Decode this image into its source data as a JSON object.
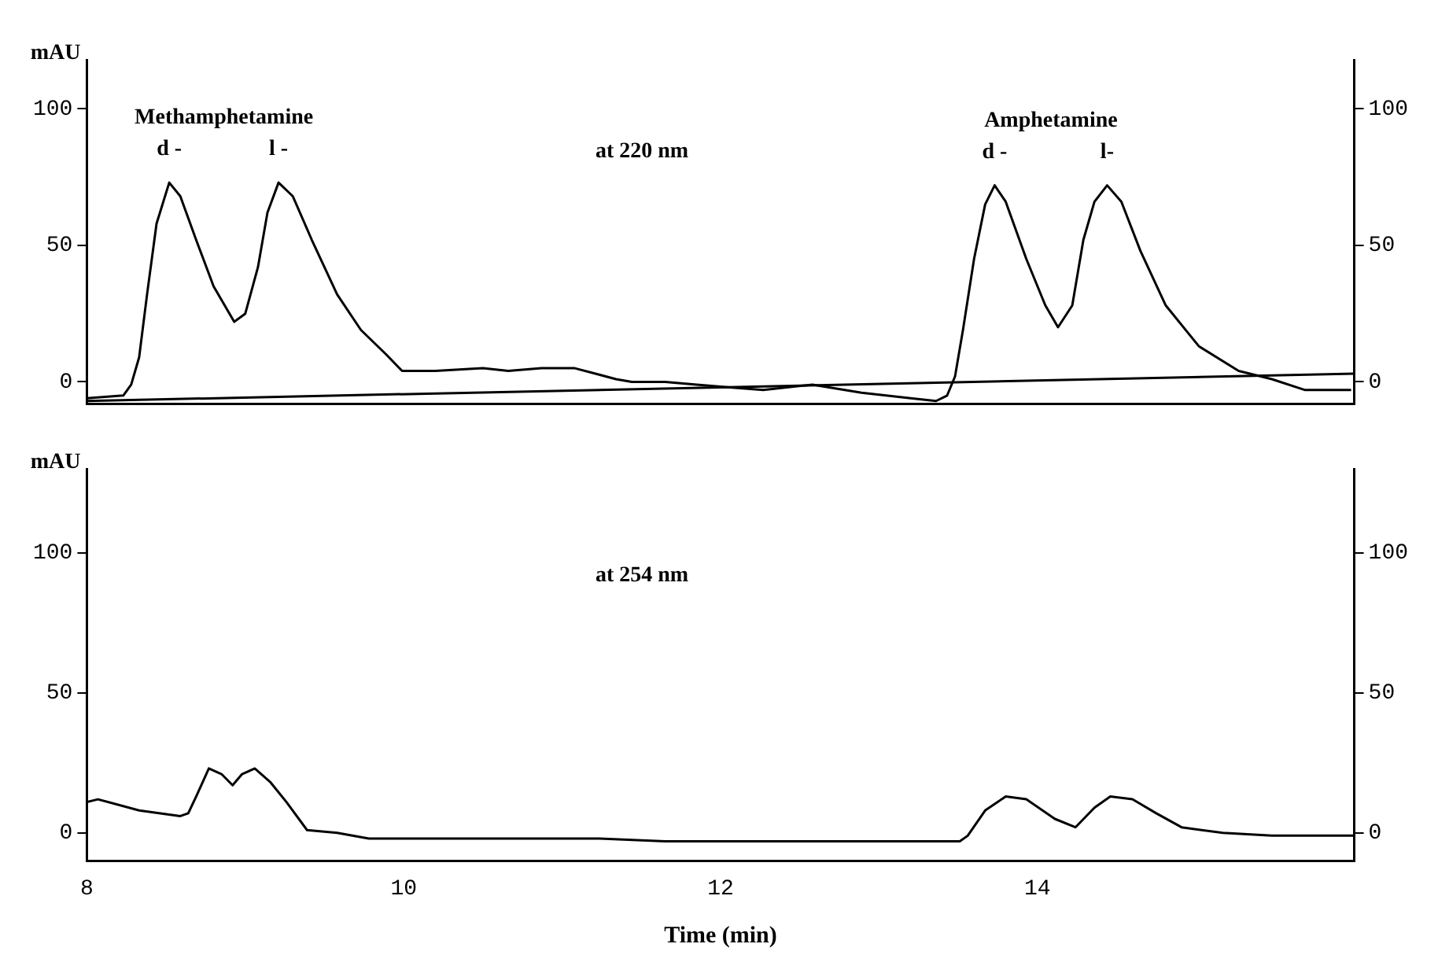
{
  "chart_data": [
    {
      "type": "line",
      "ylabel": "mAU",
      "xlim": [
        8,
        16
      ],
      "ylim": [
        -8,
        118
      ],
      "yticks": [
        0,
        50,
        100
      ],
      "y2lim": [
        -8,
        118
      ],
      "y2ticks": [
        0,
        50,
        100
      ],
      "tick_labels": "y",
      "grid": false,
      "legend": false,
      "marker": "none",
      "line_style": "solid",
      "annotations": [
        {
          "text": "d -",
          "x": 8.52,
          "y": 73
        },
        {
          "text": "l -",
          "x": 9.21,
          "y": 73
        },
        "Methamphetamine",
        {
          "text": "d -",
          "x": 13.73,
          "y": 72
        },
        {
          "text": "l-",
          "x": 14.44,
          "y": 72
        },
        "Amphetamine",
        "at 220 nm"
      ],
      "series": [
        {
          "color": "#000000",
          "x": [
            8.0,
            8.23,
            8.28,
            8.33,
            8.38,
            8.44,
            8.52,
            8.59,
            8.69,
            8.8,
            8.93,
            9.0,
            9.08,
            9.14,
            9.21,
            9.3,
            9.42,
            9.58,
            9.73,
            9.89,
            9.99,
            10.2,
            10.5,
            10.66,
            10.87,
            11.08,
            11.34,
            11.44,
            11.65,
            11.85,
            12.06,
            12.27,
            12.58,
            12.89,
            13.2,
            13.36,
            13.43,
            13.48,
            13.53,
            13.6,
            13.67,
            13.73,
            13.8,
            13.93,
            14.05,
            14.13,
            14.22,
            14.29,
            14.36,
            14.44,
            14.53,
            14.65,
            14.81,
            15.02,
            15.27,
            15.48,
            15.69,
            15.98
          ],
          "values": [
            -6,
            -5,
            -1,
            9,
            32,
            58,
            73,
            68,
            52,
            35,
            22,
            25,
            42,
            62,
            73,
            68,
            52,
            32,
            19,
            10,
            4,
            4,
            5,
            4,
            5,
            5,
            1,
            0,
            0,
            -1,
            -2,
            -3,
            -1,
            -4,
            -6,
            -7,
            -5,
            2,
            19,
            45,
            65,
            72,
            66,
            45,
            28,
            20,
            28,
            52,
            66,
            72,
            66,
            48,
            28,
            13,
            4,
            1,
            -3,
            -3
          ]
        },
        {
          "color": "#000000",
          "x": [
            8,
            16
          ],
          "values": [
            -7,
            3
          ]
        }
      ]
    },
    {
      "type": "line",
      "ylabel": "mAU",
      "xlabel": "Time (min)",
      "xlim": [
        8,
        16
      ],
      "xticks": [
        8,
        10,
        12,
        14
      ],
      "ylim": [
        -10,
        130
      ],
      "yticks": [
        0,
        50,
        100
      ],
      "y2lim": [
        -10,
        130
      ],
      "y2ticks": [
        0,
        50,
        100
      ],
      "grid": false,
      "legend": false,
      "marker": "none",
      "line_style": "solid",
      "annotations": [
        "at 254 nm"
      ],
      "series": [
        {
          "color": "#000000",
          "x": [
            8.0,
            8.07,
            8.33,
            8.59,
            8.64,
            8.69,
            8.77,
            8.85,
            8.92,
            8.98,
            9.06,
            9.16,
            9.26,
            9.39,
            9.58,
            9.78,
            10.2,
            11.23,
            11.65,
            12.06,
            12.53,
            13.0,
            13.51,
            13.56,
            13.67,
            13.8,
            13.93,
            14.11,
            14.24,
            14.36,
            14.46,
            14.6,
            14.75,
            14.91,
            15.17,
            15.48,
            16.0
          ],
          "values": [
            11,
            12,
            8,
            6,
            7,
            13,
            23,
            21,
            17,
            21,
            23,
            18,
            11,
            1,
            0,
            -2,
            -2,
            -2,
            -3,
            -3,
            -3,
            -3,
            -3,
            -1,
            8,
            13,
            12,
            5,
            2,
            9,
            13,
            12,
            7,
            2,
            0,
            -1,
            -1
          ]
        }
      ]
    }
  ]
}
